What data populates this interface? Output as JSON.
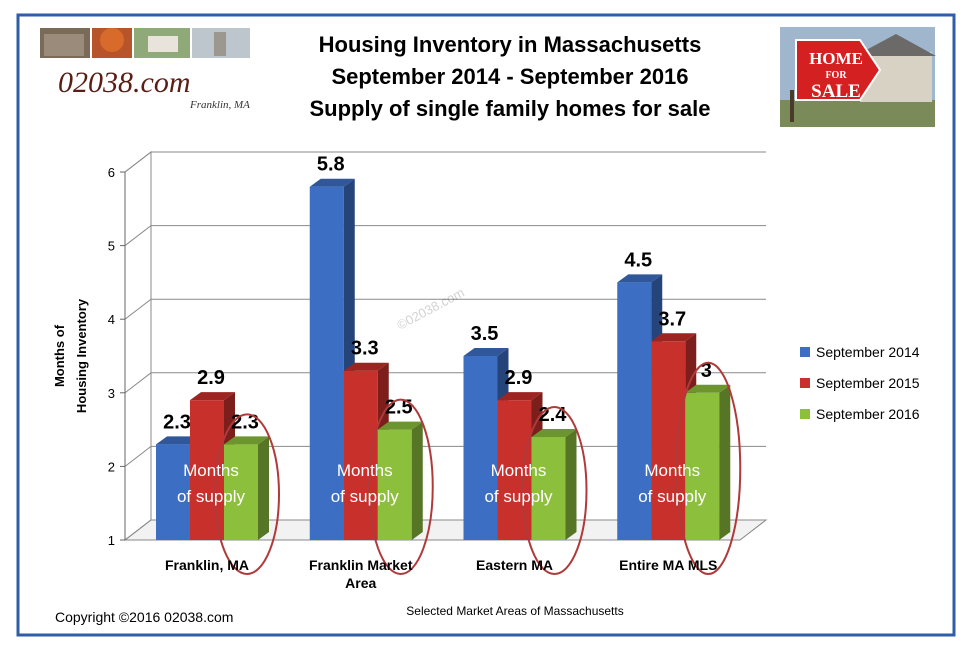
{
  "chart_data": {
    "type": "bar",
    "title_lines": [
      "Housing Inventory in Massachusetts",
      "September 2014 - September 2016",
      "Supply of single family homes for sale"
    ],
    "xlabel": "Selected Market Areas of Massachusetts",
    "ylabel_lines": [
      "Months of",
      "Housing Inventory"
    ],
    "ylim": [
      1,
      6
    ],
    "yticks": [
      "1",
      "2",
      "3",
      "4",
      "5",
      "6"
    ],
    "grid": true,
    "legend_position": "right",
    "categories": [
      {
        "lines": [
          "Franklin, MA"
        ]
      },
      {
        "lines": [
          "Franklin Market",
          "Area"
        ]
      },
      {
        "lines": [
          "Eastern MA"
        ]
      },
      {
        "lines": [
          "Entire MA MLS"
        ]
      }
    ],
    "series": [
      {
        "name": "September 2014",
        "color": "#3c6fc4",
        "values": [
          2.3,
          5.8,
          3.5,
          4.5
        ],
        "labels": [
          "2.3",
          "5.8",
          "3.5",
          "4.5"
        ]
      },
      {
        "name": "September 2015",
        "color": "#c8302c",
        "values": [
          2.9,
          3.3,
          2.9,
          3.7
        ],
        "labels": [
          "2.9",
          "3.3",
          "2.9",
          "3.7"
        ]
      },
      {
        "name": "September 2016",
        "color": "#8cbf3c",
        "values": [
          2.3,
          2.5,
          2.4,
          3.0
        ],
        "labels": [
          "2.3",
          "2.5",
          "2.4",
          "3"
        ]
      }
    ],
    "annotation_lines": [
      "Months",
      "of supply"
    ],
    "watermark": "©02038.com"
  },
  "logo": {
    "text": "02038.com",
    "sub": "Franklin, MA"
  },
  "sign": {
    "line1": "HOME",
    "line2": "FOR",
    "line3": "SALE"
  },
  "copyright": "Copyright ©2016  02038.com"
}
